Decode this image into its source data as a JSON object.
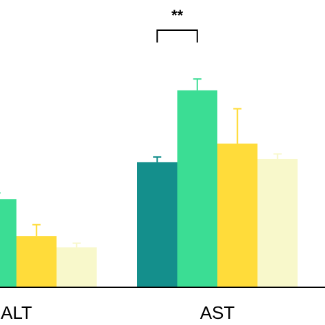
{
  "chart_data": {
    "type": "bar",
    "categories": [
      "ALT",
      "AST"
    ],
    "series": [
      {
        "color": "#148F8C",
        "values": [
          null,
          61.0
        ],
        "errors": [
          null,
          2.5
        ]
      },
      {
        "color": "#3BDD94",
        "values": [
          43.0,
          96.0
        ],
        "errors": [
          3.0,
          5.5
        ]
      },
      {
        "color": "#FFDC3A",
        "values": [
          25.0,
          70.0
        ],
        "errors": [
          5.5,
          17.0
        ]
      },
      {
        "color": "#F8F8CB",
        "values": [
          19.5,
          62.5
        ],
        "errors": [
          2.0,
          2.5
        ]
      }
    ],
    "ylim": [
      0,
      140
    ],
    "grid": false,
    "legend": "none",
    "significance": [
      {
        "category": "AST",
        "from_series": 0,
        "to_series": 1,
        "label": "**"
      }
    ]
  }
}
